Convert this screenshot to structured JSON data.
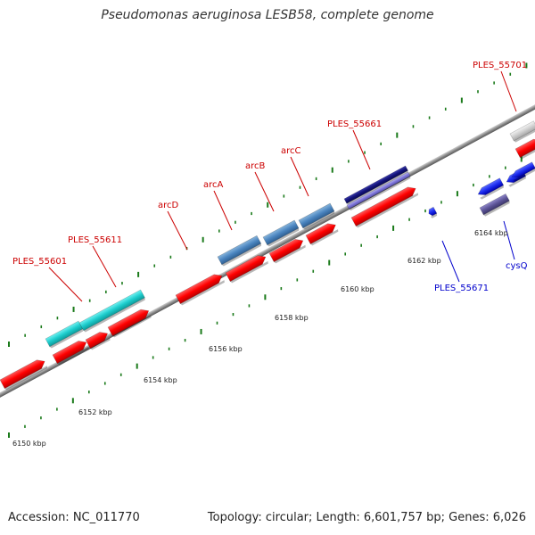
{
  "title": "Pseudomonas aeruginosa LESB58, complete genome",
  "footer": {
    "accession": "Accession: NC_011770",
    "summary": "Topology: circular; Length: 6,601,757 bp; Genes: 6,026"
  },
  "colors": {
    "forward_cds": "#ff0000",
    "reverse_cds": "#0000ee",
    "gc_track": "#1a7a1a",
    "backbone": "#8c8c8c",
    "label_forward": "#cc0000",
    "label_reverse": "#0000cc"
  },
  "tick_labels": [
    "6150 kbp",
    "6152 kbp",
    "6154 kbp",
    "6156 kbp",
    "6158 kbp",
    "6160 kbp",
    "6162 kbp",
    "6164 kbp"
  ],
  "gene_labels": [
    {
      "text": "PLES_55601",
      "strand": "forward"
    },
    {
      "text": "PLES_55611",
      "strand": "forward"
    },
    {
      "text": "arcD",
      "strand": "forward"
    },
    {
      "text": "arcA",
      "strand": "forward"
    },
    {
      "text": "arcB",
      "strand": "forward"
    },
    {
      "text": "arcC",
      "strand": "forward"
    },
    {
      "text": "PLES_55661",
      "strand": "forward"
    },
    {
      "text": "PLES_55701",
      "strand": "forward"
    },
    {
      "text": "PLES_55671",
      "strand": "reverse"
    },
    {
      "text": "cysQ",
      "strand": "reverse"
    }
  ]
}
